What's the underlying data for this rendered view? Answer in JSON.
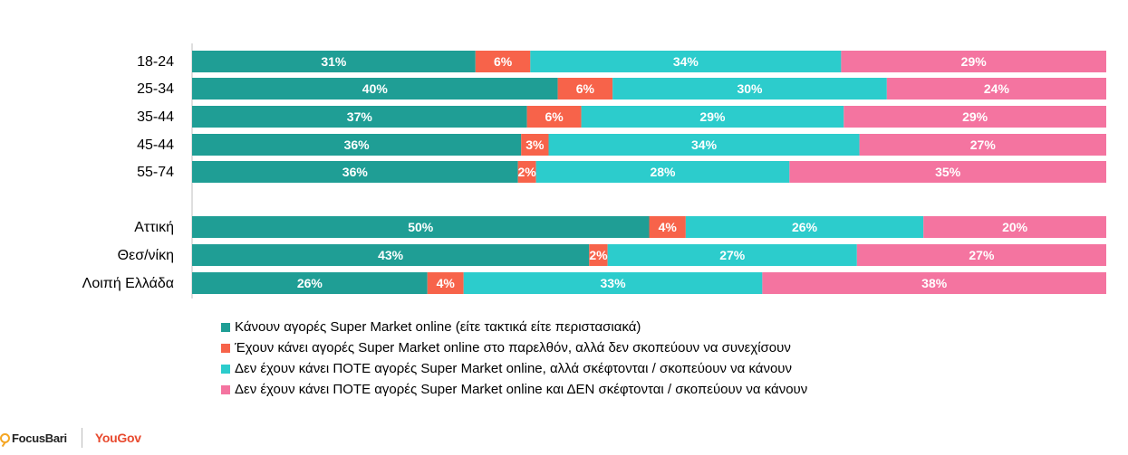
{
  "chart_data": {
    "type": "bar",
    "orientation": "horizontal",
    "stacked": "100%",
    "categories": [
      "18-24",
      "25-34",
      "35-44",
      "45-44",
      "55-74",
      "Αττική",
      "Θεσ/νίκη",
      "Λοιπή Ελλάδα"
    ],
    "category_groups": [
      [
        "18-24",
        "25-34",
        "35-44",
        "45-44",
        "55-74"
      ],
      [
        "Αττική",
        "Θεσ/νίκη",
        "Λοιπή Ελλάδα"
      ]
    ],
    "series": [
      {
        "name": "Κάνουν αγορές Super Market online (είτε τακτικά είτε περιστασιακά)",
        "color": "#1f9e95",
        "values": [
          31,
          40,
          37,
          36,
          36,
          50,
          43,
          26
        ]
      },
      {
        "name": "Έχουν κάνει αγορές Super Market online στο παρελθόν, αλλά δεν σκοπεύουν να συνεχίσουν",
        "color": "#f7634a",
        "values": [
          6,
          6,
          6,
          3,
          2,
          4,
          2,
          4
        ]
      },
      {
        "name": "Δεν έχουν κάνει ΠΟΤΕ αγορές Super Market online, αλλά σκέφτονται / σκοπεύουν να κάνουν",
        "color": "#2ccccc",
        "values": [
          34,
          30,
          29,
          34,
          28,
          26,
          27,
          33
        ]
      },
      {
        "name": "Δεν έχουν κάνει ΠΟΤΕ αγορές Super Market online και ΔΕΝ σκέφτονται / σκοπεύουν να κάνουν",
        "color": "#f474a0",
        "values": [
          29,
          24,
          29,
          27,
          35,
          20,
          27,
          38
        ]
      }
    ],
    "value_suffix": "%",
    "legend_position": "bottom",
    "grid": false
  },
  "footer": {
    "focus_logo": "FocusBari",
    "yougov_logo": "YouGov"
  }
}
